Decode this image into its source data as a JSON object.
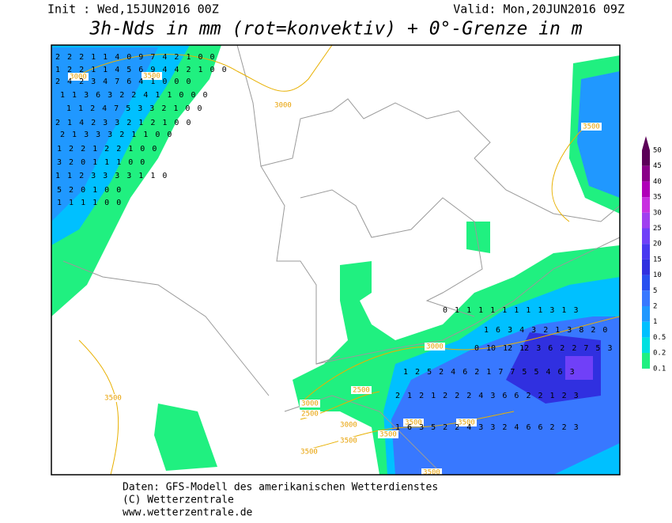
{
  "header": {
    "init": "Init : Wed,15JUN2016 00Z",
    "valid": "Valid: Mon,20JUN2016 09Z",
    "title": "3h-Nds in mm (rot=konvektiv) + 0°-Grenze in m"
  },
  "legend": {
    "levels": [
      {
        "label": "50",
        "color": "#5c0058"
      },
      {
        "label": "45",
        "color": "#8a0088"
      },
      {
        "label": "40",
        "color": "#b000b8"
      },
      {
        "label": "35",
        "color": "#c830e0"
      },
      {
        "label": "30",
        "color": "#a040f0"
      },
      {
        "label": "25",
        "color": "#7040f8"
      },
      {
        "label": "20",
        "color": "#4838f0"
      },
      {
        "label": "15",
        "color": "#3030e0"
      },
      {
        "label": "10",
        "color": "#2850f0"
      },
      {
        "label": "5",
        "color": "#3878ff"
      },
      {
        "label": "2",
        "color": "#2098ff"
      },
      {
        "label": "1",
        "color": "#00c0ff"
      },
      {
        "label": "0.5",
        "color": "#00e0e0"
      },
      {
        "label": "0.2",
        "color": "#00e8b0"
      },
      {
        "label": "0.1",
        "color": "#20f080"
      }
    ]
  },
  "contour_labels": [
    "3000",
    "3500",
    "3000",
    "3500",
    "3000",
    "2500",
    "3500",
    "3000",
    "2500",
    "3000",
    "3500",
    "3500",
    "3500",
    "3500",
    "3500",
    "3500"
  ],
  "grid_values": [
    "2 2 2 1 1 4 0 9 7 4 2 1 0 0",
    "1 2 2 1 1 4 5 6 9 4 4 2 1 0 0",
    "2 4 2 3 4 7 6 4 1 0 0 0",
    "1 1 3 6 3 2 2 4 1 1 0 0 0",
    "1 1 2 4 7 5 3 3 2 1 0 0",
    "2 1 4 2 3 3 2 1 2 1 0 0",
    "2 1 3 3 3 2 1 1 0 0",
    "1 2 2 1 2 2 1 0 0",
    "3 2 0 1 1 1 0 0",
    "1 1 2 3 3 3 3 1 1 0",
    "5 2 0 1 0 0",
    "1 1 1 1 0 0",
    "0 1 1 1 1 1 1 1 1 3 1 3",
    "1 6 3 4 3 2 1 3 8 2 0",
    "0 10 12 12 3 6 2 2 7 5 3",
    "1 2 5 2 4 6 2 1 7 7 5 5 4 6 3",
    "2 1 2 1 2 2 2 4 3 6 6 2 2 1 2 3",
    "1 6 3 5 2 2 4 3 3 2 4 6 6 2 2 3"
  ],
  "footer": [
    "Daten: GFS-Modell des amerikanischen Wetterdienstes",
    "(C) Wetterzentrale",
    "www.wetterzentrale.de"
  ]
}
